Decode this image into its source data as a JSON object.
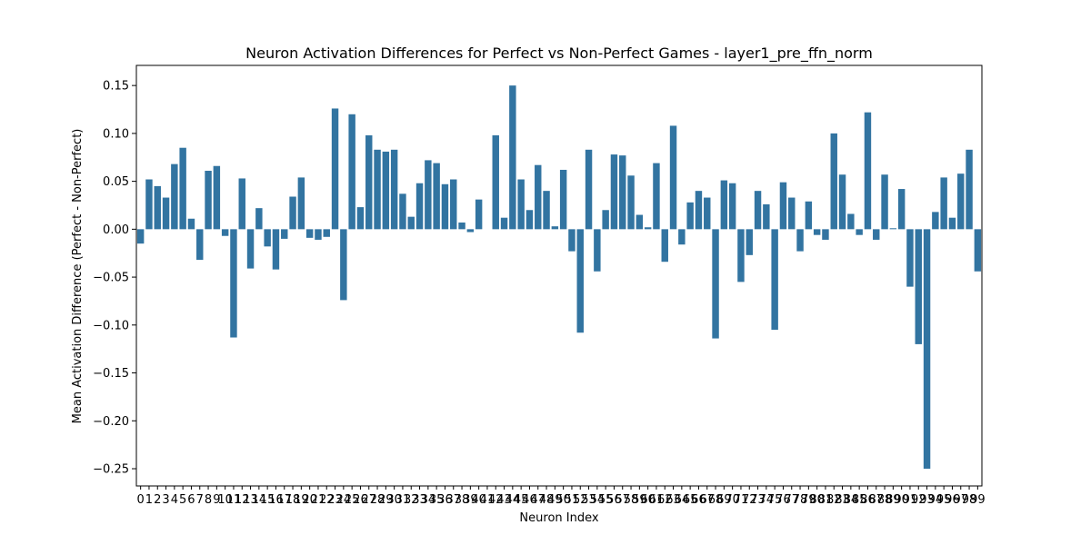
{
  "chart_data": {
    "type": "bar",
    "title": "Neuron Activation Differences for Perfect vs Non-Perfect Games - layer1_pre_ffn_norm",
    "xlabel": "Neuron Index",
    "ylabel": "Mean Activation Difference (Perfect - Non-Perfect)",
    "ylim": [
      -0.268,
      0.171
    ],
    "yticks": [
      0.15,
      0.1,
      0.05,
      0.0,
      -0.05,
      -0.1,
      -0.15,
      -0.2,
      -0.25
    ],
    "ytick_labels": [
      "0.15",
      "0.10",
      "0.05",
      "0.00",
      "−0.05",
      "−0.10",
      "−0.15",
      "−0.20",
      "−0.25"
    ],
    "grid": false,
    "legend": "none",
    "bar_color": "#3274a1",
    "categories": [
      "0",
      "1",
      "2",
      "3",
      "4",
      "5",
      "6",
      "7",
      "8",
      "9",
      "10",
      "11",
      "12",
      "13",
      "14",
      "15",
      "16",
      "17",
      "18",
      "19",
      "20",
      "21",
      "22",
      "23",
      "24",
      "25",
      "26",
      "27",
      "28",
      "29",
      "30",
      "31",
      "32",
      "33",
      "34",
      "35",
      "36",
      "37",
      "38",
      "39",
      "40",
      "41",
      "42",
      "43",
      "44",
      "45",
      "46",
      "47",
      "48",
      "49",
      "50",
      "51",
      "52",
      "53",
      "54",
      "55",
      "56",
      "57",
      "58",
      "59",
      "60",
      "61",
      "62",
      "63",
      "64",
      "65",
      "66",
      "67",
      "68",
      "69",
      "70",
      "71",
      "72",
      "73",
      "74",
      "75",
      "76",
      "77",
      "78",
      "79",
      "80",
      "81",
      "82",
      "83",
      "84",
      "85",
      "86",
      "87",
      "88",
      "89",
      "90",
      "91",
      "92",
      "93",
      "94",
      "95",
      "96",
      "97",
      "98",
      "99"
    ],
    "values": [
      -0.015,
      0.052,
      0.045,
      0.033,
      0.068,
      0.085,
      0.011,
      -0.032,
      0.061,
      0.066,
      -0.007,
      -0.113,
      0.053,
      -0.041,
      0.022,
      -0.018,
      -0.042,
      -0.01,
      0.034,
      0.054,
      -0.009,
      -0.011,
      -0.008,
      0.126,
      -0.074,
      0.12,
      0.023,
      0.098,
      0.083,
      0.081,
      0.083,
      0.037,
      0.013,
      0.048,
      0.072,
      0.069,
      0.047,
      0.052,
      0.007,
      -0.003,
      0.031,
      0.0,
      0.098,
      0.012,
      0.15,
      0.052,
      0.02,
      0.067,
      0.04,
      0.003,
      0.062,
      -0.023,
      -0.108,
      0.083,
      -0.044,
      0.02,
      0.078,
      0.077,
      0.056,
      0.015,
      0.002,
      0.069,
      -0.034,
      0.108,
      -0.016,
      0.028,
      0.04,
      0.033,
      -0.114,
      0.051,
      0.048,
      -0.055,
      -0.027,
      0.04,
      0.026,
      -0.105,
      0.049,
      0.033,
      -0.023,
      0.029,
      -0.006,
      -0.011,
      0.1,
      0.057,
      0.016,
      -0.006,
      0.122,
      -0.011,
      0.057,
      0.001,
      0.042,
      -0.06,
      -0.12,
      -0.25,
      0.018,
      0.054,
      0.012,
      0.058,
      0.083,
      -0.044
    ]
  }
}
